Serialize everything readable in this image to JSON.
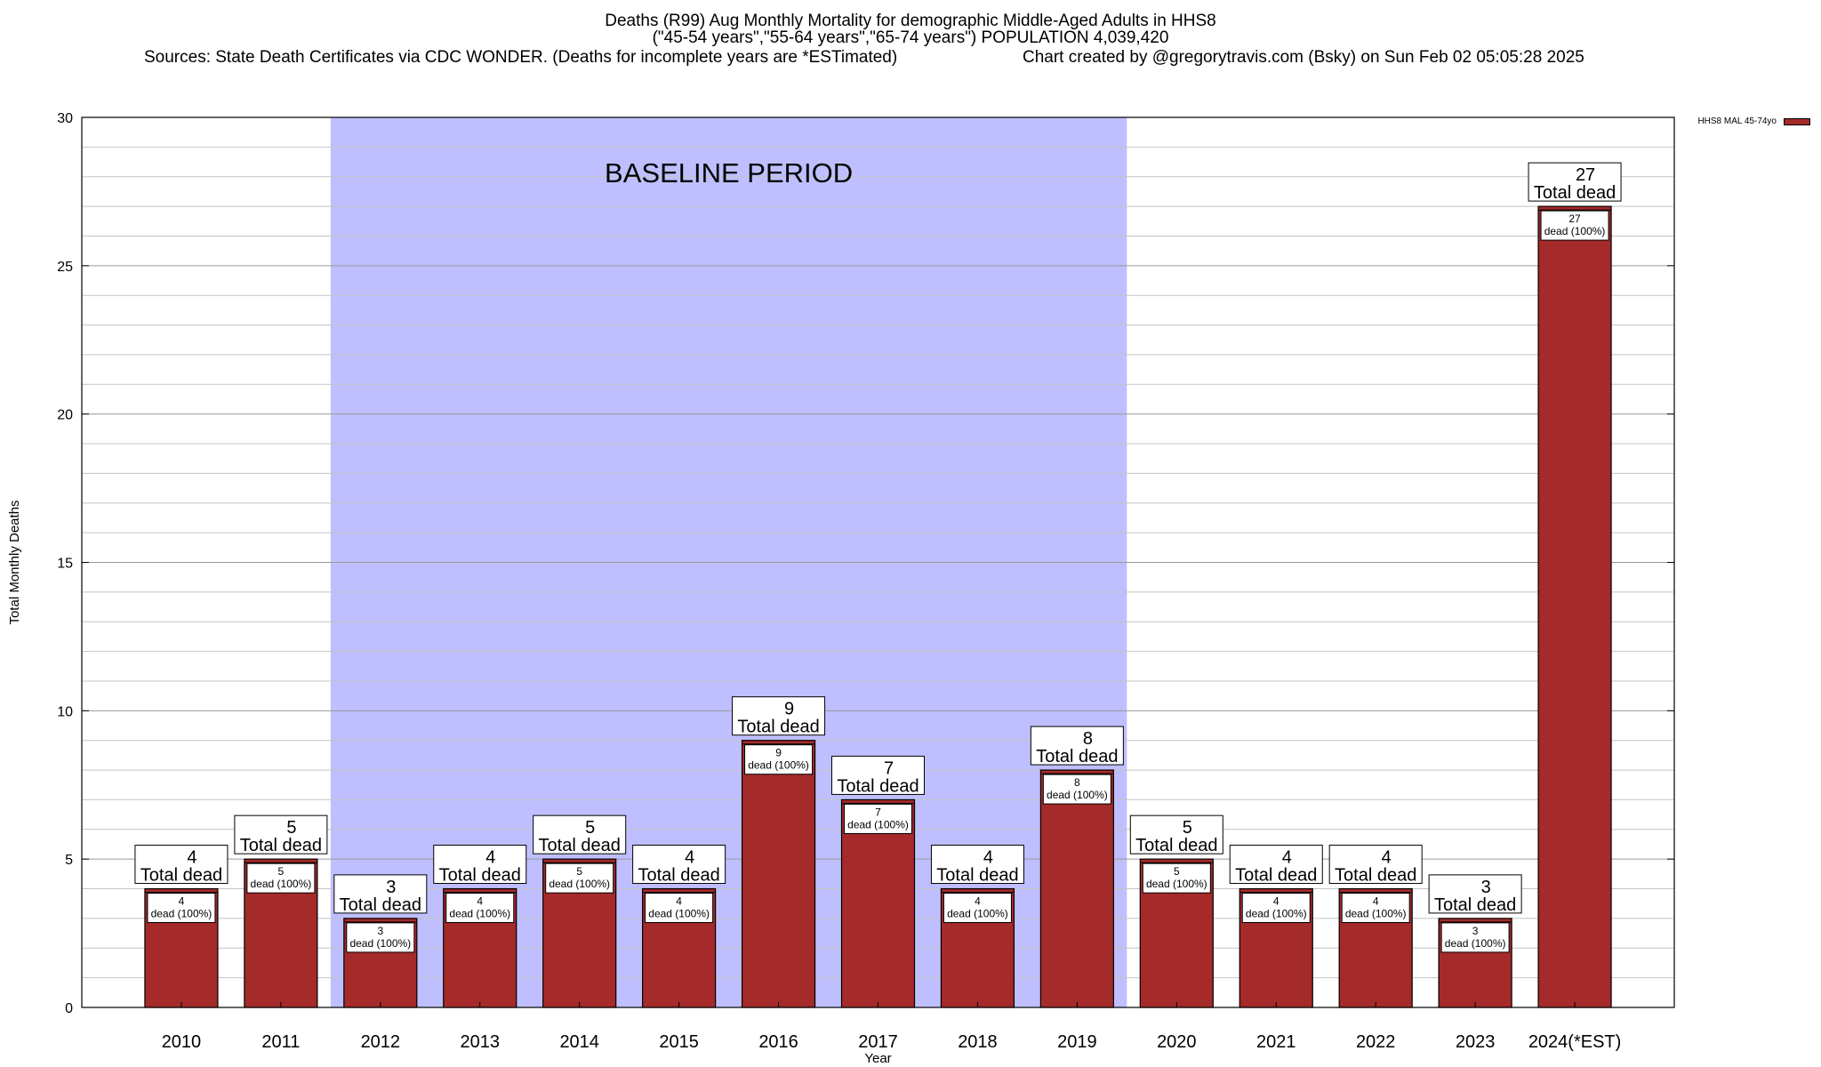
{
  "title": {
    "line1": "Deaths (R99) Aug Monthly Mortality for demographic Middle-Aged Adults in HHS8",
    "line2": "(\"45-54 years\",\"55-64 years\",\"65-74 years\") POPULATION 4,039,420",
    "sources": "Sources: State Death Certificates via CDC WONDER. (Deaths for incomplete years are *ESTimated)",
    "credit": "Chart created by @gregorytravis.com (Bsky) on Sun Feb 02 05:05:28 2025"
  },
  "legend": {
    "label": "HHS8 MAL 45-74yo"
  },
  "chart_data": {
    "type": "bar",
    "categories": [
      "2010",
      "2011",
      "2012",
      "2013",
      "2014",
      "2015",
      "2016",
      "2017",
      "2018",
      "2019",
      "2020",
      "2021",
      "2022",
      "2023",
      "2024(*EST)"
    ],
    "series": [
      {
        "name": "HHS8 MAL 45-74yo",
        "values": [
          4,
          5,
          3,
          4,
          5,
          4,
          9,
          7,
          4,
          8,
          5,
          4,
          4,
          3,
          27
        ]
      }
    ],
    "top_label_suffix": "Total dead",
    "inner_label_suffix": "dead (100%)",
    "xlabel": "Year",
    "ylabel": "Total Monthly Deaths",
    "ylim": [
      0,
      30
    ],
    "yticks": [
      0,
      5,
      10,
      15,
      20,
      25,
      30
    ],
    "grid": true,
    "baseline": {
      "label": "BASELINE PERIOD",
      "from": "2012",
      "to": "2019",
      "color": "#bfbfff"
    },
    "bar_color": "#a52a2a",
    "legend_position": "top-right"
  }
}
